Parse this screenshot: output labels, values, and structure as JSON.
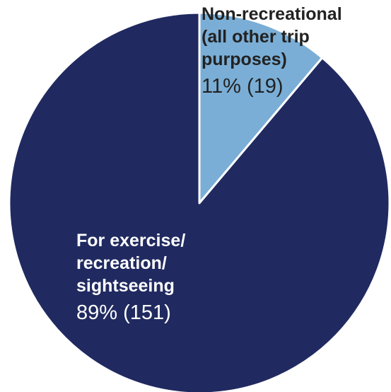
{
  "chart_data": {
    "type": "pie",
    "slices": [
      {
        "label_lines": [
          "Non-recreational",
          "(all other trip",
          "purposes)"
        ],
        "value_text": "11% (19)",
        "percent": 11,
        "count": 19,
        "color": "#7aaed6"
      },
      {
        "label_lines": [
          "For exercise/",
          "recreation/",
          "sightseeing"
        ],
        "value_text": "89% (151)",
        "percent": 89,
        "count": 151,
        "color": "#202a60"
      }
    ]
  }
}
